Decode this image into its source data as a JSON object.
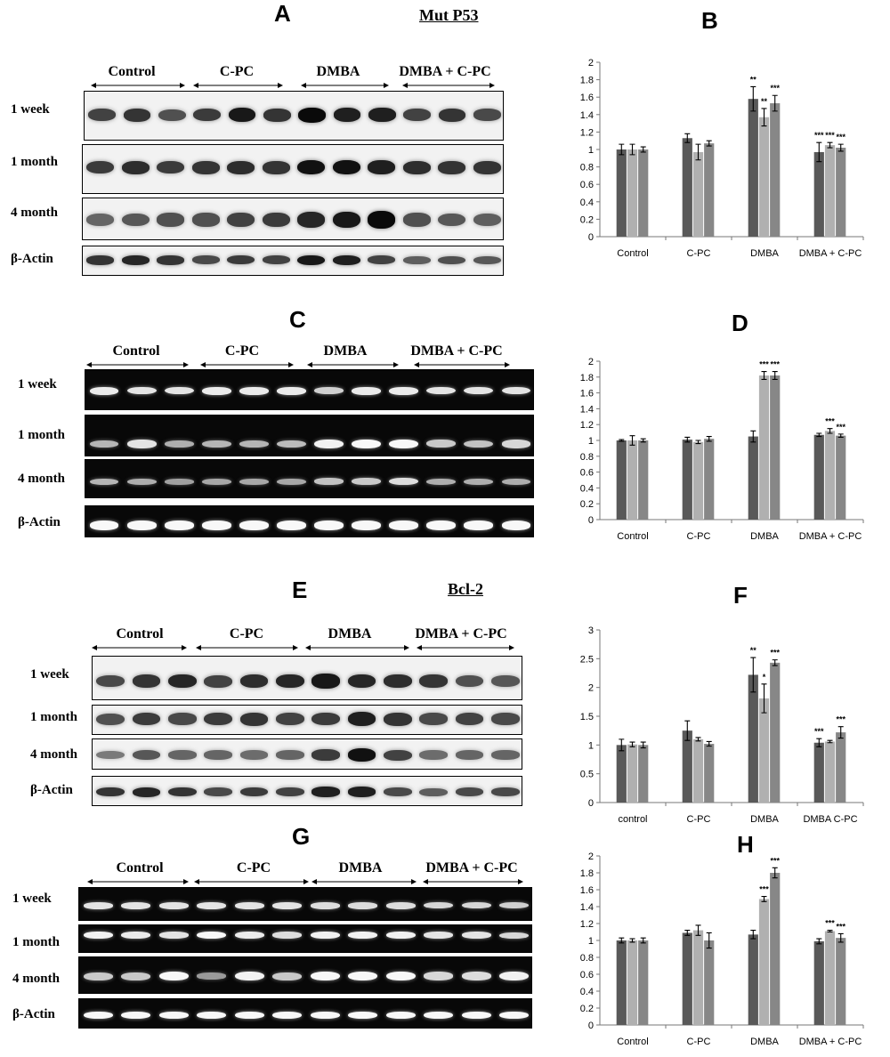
{
  "panels": [
    {
      "letter": "A",
      "title": "Mut P53"
    },
    {
      "letter": "B"
    },
    {
      "letter": "C"
    },
    {
      "letter": "D"
    },
    {
      "letter": "E",
      "title": "Bcl-2"
    },
    {
      "letter": "F"
    },
    {
      "letter": "G"
    },
    {
      "letter": "H"
    }
  ],
  "blots": [
    {
      "groups": [
        "Control",
        "C-PC",
        "DMBA",
        "DMBA + C-PC"
      ],
      "rows": [
        "1 week",
        "1 month",
        "4 month",
        "β-Actin"
      ]
    },
    {
      "groups": [
        "Control",
        "C-PC",
        "DMBA",
        "DMBA + C-PC"
      ],
      "rows": [
        "1 week",
        "1 month",
        "4 month",
        "β-Actin"
      ]
    },
    {
      "groups": [
        "Control",
        "C-PC",
        "DMBA",
        "DMBA + C-PC"
      ],
      "rows": [
        "1 week",
        "1 month",
        "4 month",
        "β-Actin"
      ]
    },
    {
      "groups": [
        "Control",
        "C-PC",
        "DMBA",
        "DMBA + C-PC"
      ],
      "rows": [
        "1 week",
        "1 month",
        "4 month",
        "β-Actin"
      ]
    }
  ],
  "colors": {
    "series": [
      "#595959",
      "#b0b0b0",
      "#878787"
    ],
    "blot_light_bg": "#f2f2f2",
    "blot_dark_bg": "#080808"
  },
  "chart_data": [
    {
      "type": "bar",
      "panel": "B",
      "categories": [
        "Control",
        "C-PC",
        "DMBA",
        "DMBA + C-PC"
      ],
      "ylim": [
        0,
        2
      ],
      "yticks": [
        "0",
        "0.2",
        "0.4",
        "0.6",
        "0.8",
        "1",
        "1.2",
        "1.4",
        "1.6",
        "1.8",
        "2"
      ],
      "series": [
        {
          "values": [
            1.0,
            1.13,
            1.58,
            0.97
          ],
          "errors": [
            0.06,
            0.05,
            0.14,
            0.11
          ]
        },
        {
          "values": [
            1.0,
            0.97,
            1.37,
            1.05
          ],
          "errors": [
            0.06,
            0.09,
            0.1,
            0.03
          ]
        },
        {
          "values": [
            1.0,
            1.07,
            1.53,
            1.02
          ],
          "errors": [
            0.03,
            0.03,
            0.09,
            0.04
          ]
        }
      ],
      "annotations": [
        [
          "",
          "",
          "",
          "***"
        ],
        [
          "",
          "",
          "**",
          "***"
        ],
        [
          "",
          "",
          "***",
          "***"
        ]
      ],
      "annotations_g1": [
        "",
        "",
        "**",
        ""
      ]
    },
    {
      "type": "bar",
      "panel": "D",
      "categories": [
        "Control",
        "C-PC",
        "DMBA",
        "DMBA + C-PC"
      ],
      "ylim": [
        0,
        2
      ],
      "yticks": [
        "0",
        "0.2",
        "0.4",
        "0.6",
        "0.8",
        "1",
        "1.2",
        "1.4",
        "1.6",
        "1.8",
        "2"
      ],
      "series": [
        {
          "values": [
            1.0,
            1.01,
            1.05,
            1.07
          ],
          "errors": [
            0.01,
            0.03,
            0.07,
            0.02
          ]
        },
        {
          "values": [
            1.0,
            0.98,
            1.82,
            1.12
          ],
          "errors": [
            0.06,
            0.02,
            0.05,
            0.03
          ]
        },
        {
          "values": [
            1.0,
            1.02,
            1.82,
            1.06
          ],
          "errors": [
            0.02,
            0.03,
            0.05,
            0.02
          ]
        }
      ],
      "annotations": [
        [
          "",
          "",
          "",
          ""
        ],
        [
          "",
          "",
          "***",
          "***"
        ],
        [
          "",
          "",
          "***",
          "***"
        ]
      ]
    },
    {
      "type": "bar",
      "panel": "F",
      "categories": [
        "control",
        "C-PC",
        "DMBA",
        "DMBA C-PC"
      ],
      "ylim": [
        0,
        3
      ],
      "yticks": [
        "0",
        "0.5",
        "1",
        "1.5",
        "2",
        "2.5",
        "3"
      ],
      "series": [
        {
          "values": [
            1.0,
            1.25,
            2.22,
            1.04
          ],
          "errors": [
            0.1,
            0.17,
            0.3,
            0.07
          ]
        },
        {
          "values": [
            1.01,
            1.1,
            1.81,
            1.06
          ],
          "errors": [
            0.04,
            0.03,
            0.25,
            0.02
          ]
        },
        {
          "values": [
            1.0,
            1.02,
            2.43,
            1.22
          ],
          "errors": [
            0.05,
            0.04,
            0.05,
            0.1
          ]
        }
      ],
      "annotations": [
        [
          "",
          "",
          "**",
          "***"
        ],
        [
          "",
          "",
          "*",
          ""
        ],
        [
          "",
          "",
          "***",
          "***"
        ]
      ]
    },
    {
      "type": "bar",
      "panel": "H",
      "categories": [
        "Control",
        "C-PC",
        "DMBA",
        "DMBA + C-PC"
      ],
      "ylim": [
        0,
        2
      ],
      "yticks": [
        "0",
        "0.2",
        "0.4",
        "0.6",
        "0.8",
        "1",
        "1.2",
        "1.4",
        "1.6",
        "1.8",
        "2"
      ],
      "series": [
        {
          "values": [
            1.0,
            1.09,
            1.07,
            0.99
          ],
          "errors": [
            0.03,
            0.03,
            0.05,
            0.03
          ]
        },
        {
          "values": [
            1.0,
            1.12,
            1.49,
            1.11
          ],
          "errors": [
            0.02,
            0.06,
            0.03,
            0.01
          ]
        },
        {
          "values": [
            1.0,
            1.0,
            1.8,
            1.03
          ],
          "errors": [
            0.03,
            0.09,
            0.06,
            0.05
          ]
        }
      ],
      "annotations": [
        [
          "",
          "",
          "",
          ""
        ],
        [
          "",
          "",
          "***",
          "***"
        ],
        [
          "",
          "",
          "***",
          "***"
        ]
      ]
    }
  ]
}
